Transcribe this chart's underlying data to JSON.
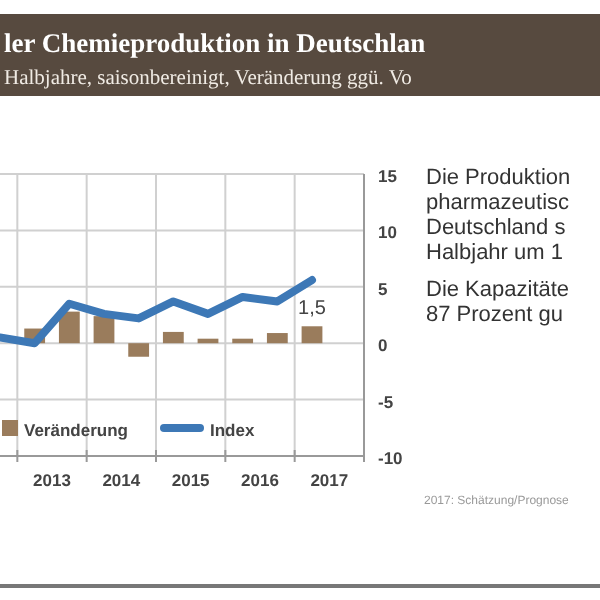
{
  "chart_data": {
    "type": "bar",
    "title": "ler Chemieproduktion in Deutschlan",
    "subtitle": "Halbjahre, saisonbereinigt, Veränderung ggü. Vo",
    "x": [
      2013.25,
      2013.75,
      2014.25,
      2014.75,
      2015.25,
      2015.75,
      2016.25,
      2016.75,
      2017.25
    ],
    "series": [
      {
        "name": "Veränderung",
        "color": "#9a7c5c",
        "values": [
          1.3,
          2.8,
          2.4,
          -1.2,
          1.0,
          0.4,
          0.4,
          0.9,
          1.5
        ],
        "value_labels": [
          null,
          null,
          null,
          null,
          null,
          null,
          null,
          null,
          "1,5"
        ]
      },
      {
        "name": "Index",
        "type": "line",
        "color": "#3d78b6",
        "x": [
          2012.75,
          2013.25,
          2013.75,
          2014.25,
          2014.75,
          2015.25,
          2015.75,
          2016.25,
          2016.75,
          2017.25
        ],
        "values": [
          0.5,
          0,
          3.5,
          2.6,
          2.2,
          3.7,
          2.6,
          4.1,
          3.7,
          5.6
        ]
      }
    ],
    "xlim": [
      2012.75,
      2018
    ],
    "xticks": [
      {
        "value": 2013,
        "label": null
      },
      {
        "value": 2013.5,
        "label": "2013"
      },
      {
        "value": 2014,
        "label": null
      },
      {
        "value": 2014.5,
        "label": "2014"
      },
      {
        "value": 2015,
        "label": null
      },
      {
        "value": 2015.5,
        "label": "2015"
      },
      {
        "value": 2016,
        "label": null
      },
      {
        "value": 2016.5,
        "label": "2016"
      },
      {
        "value": 2017,
        "label": null
      },
      {
        "value": 2017.5,
        "label": "2017"
      },
      {
        "value": 2018,
        "label": null
      }
    ],
    "ylim": [
      -10,
      15
    ],
    "yticks": [
      -10,
      -5,
      0,
      5,
      10,
      15
    ],
    "grid": true,
    "legend": "bottom",
    "annotations": [
      "Die Produktion",
      "pharmazeutisc",
      "Deutschland s",
      "Halbjahr um 1",
      "Die Kapazitäte",
      "87 Prozent gu",
      "2017: Schätzung/Prognose"
    ]
  }
}
